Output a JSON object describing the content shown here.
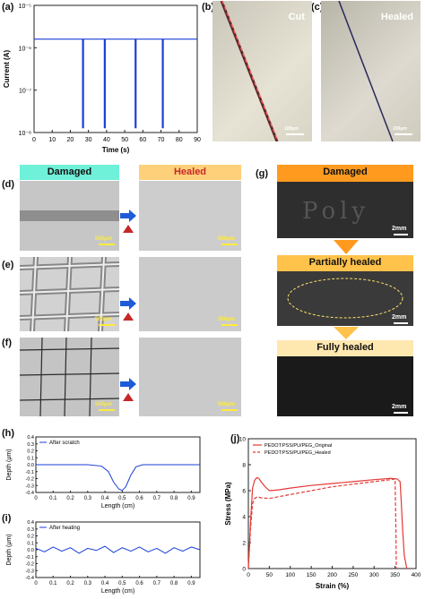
{
  "panel_labels": {
    "a": "(a)",
    "b": "(b)",
    "c": "(c)",
    "d": "(d)",
    "e": "(e)",
    "f": "(f)",
    "g": "(g)",
    "h": "(h)",
    "i": "(i)",
    "j": "(j)"
  },
  "panel_b": {
    "title": "Cut",
    "scale": "100μm"
  },
  "panel_c": {
    "title": "Healed",
    "scale": "100μm"
  },
  "panel_def": {
    "damaged_header": "Damaged",
    "healed_header": "Healed",
    "scale": "500μm"
  },
  "panel_g": {
    "damaged": "Damaged",
    "partial": "Partially healed",
    "full": "Fully healed",
    "scale": "2mm",
    "text_on_image": "Poly"
  },
  "colors": {
    "accent_red": "#e53935",
    "arrow_blue": "#1e5bd8",
    "line_blue": "#1a3fd6",
    "header_cyan": "#6ff0d8",
    "header_orange": "#ffd07a",
    "g_orange": "#ff9a1f",
    "g_partial": "#ffc24a",
    "g_full": "#ffe7b0"
  },
  "chart_data": [
    {
      "id": "a",
      "type": "line",
      "xlabel": "Time (s)",
      "ylabel": "Current (A)",
      "yscale": "log",
      "xlim": [
        0,
        90
      ],
      "ylim": [
        1e-08,
        1e-05
      ],
      "xticks": [
        0,
        10,
        20,
        30,
        40,
        50,
        60,
        70,
        80,
        90
      ],
      "yticks": [
        {
          "v": -8,
          "label": "10⁻⁸"
        },
        {
          "v": -7,
          "label": "10⁻⁷"
        },
        {
          "v": -6,
          "label": "10⁻⁶"
        },
        {
          "v": -5,
          "label": "10⁻⁵"
        }
      ],
      "baseline": 1.6e-06,
      "drop_value": 1.3e-08,
      "drops_x": [
        27,
        39,
        56,
        71
      ],
      "series": [
        {
          "values": "constant 1.6e-6 with drops to 1.3e-8 at 27, 39, 56, 71 s"
        }
      ]
    },
    {
      "id": "h",
      "type": "line",
      "xlabel": "Length (cm)",
      "ylabel": "Depth (μm)",
      "xlim": [
        0,
        0.95
      ],
      "ylim": [
        -0.4,
        0.4
      ],
      "xticks": [
        0,
        0.1,
        0.2,
        0.3,
        0.4,
        0.5,
        0.6,
        0.7,
        0.8,
        0.9
      ],
      "yticks": [
        -0.4,
        -0.3,
        -0.2,
        -0.1,
        0,
        0.1,
        0.2,
        0.3,
        0.4
      ],
      "legend": "After scratch",
      "x": [
        0,
        0.3,
        0.38,
        0.42,
        0.45,
        0.48,
        0.5,
        0.52,
        0.55,
        0.58,
        0.62,
        0.95
      ],
      "y": [
        0,
        0,
        -0.02,
        -0.1,
        -0.25,
        -0.35,
        -0.37,
        -0.32,
        -0.15,
        -0.03,
        0,
        0
      ]
    },
    {
      "id": "i",
      "type": "line",
      "xlabel": "Length (cm)",
      "ylabel": "Depth (μm)",
      "xlim": [
        0,
        0.95
      ],
      "ylim": [
        -0.4,
        0.4
      ],
      "xticks": [
        0,
        0.1,
        0.2,
        0.3,
        0.4,
        0.5,
        0.6,
        0.7,
        0.8,
        0.9
      ],
      "yticks": [
        -0.4,
        -0.3,
        -0.2,
        -0.1,
        0,
        0.1,
        0.2,
        0.3,
        0.4
      ],
      "legend": "After heating",
      "x": [
        0,
        0.05,
        0.1,
        0.15,
        0.2,
        0.25,
        0.3,
        0.35,
        0.4,
        0.45,
        0.5,
        0.55,
        0.6,
        0.65,
        0.7,
        0.75,
        0.8,
        0.85,
        0.9,
        0.95
      ],
      "y": [
        0.02,
        -0.03,
        0.04,
        -0.02,
        0.03,
        -0.05,
        0.02,
        -0.01,
        0.05,
        -0.04,
        0.03,
        -0.02,
        0.04,
        -0.03,
        0.02,
        -0.05,
        0.03,
        -0.02,
        0.04,
        0
      ]
    },
    {
      "id": "j",
      "type": "line",
      "xlabel": "Strain (%)",
      "ylabel": "Stress (MPa)",
      "xlim": [
        0,
        400
      ],
      "ylim": [
        0,
        10
      ],
      "xticks": [
        0,
        50,
        100,
        150,
        200,
        250,
        300,
        350,
        400
      ],
      "yticks": [
        0,
        2,
        4,
        6,
        8,
        10
      ],
      "series": [
        {
          "name": "PEDOT:PSS/PU/PEG_Original",
          "style": "solid",
          "x": [
            0,
            5,
            10,
            15,
            20,
            25,
            30,
            40,
            50,
            70,
            100,
            150,
            200,
            250,
            300,
            340,
            355,
            362,
            365,
            368,
            372,
            378
          ],
          "y": [
            0,
            3.5,
            6.2,
            6.8,
            7.0,
            6.95,
            6.7,
            6.3,
            6.0,
            6.05,
            6.2,
            6.4,
            6.55,
            6.7,
            6.85,
            6.95,
            6.9,
            6.7,
            5,
            3,
            1,
            0
          ]
        },
        {
          "name": "PEDOT:PSS/PU/PEG_Healed",
          "style": "dashed",
          "x": [
            0,
            5,
            10,
            15,
            20,
            25,
            30,
            50,
            100,
            150,
            200,
            250,
            300,
            340,
            350,
            352,
            353
          ],
          "y": [
            0,
            3,
            5.0,
            5.4,
            5.5,
            5.5,
            5.45,
            5.4,
            5.7,
            6.0,
            6.3,
            6.5,
            6.7,
            6.85,
            6.9,
            3,
            0
          ]
        }
      ]
    }
  ]
}
